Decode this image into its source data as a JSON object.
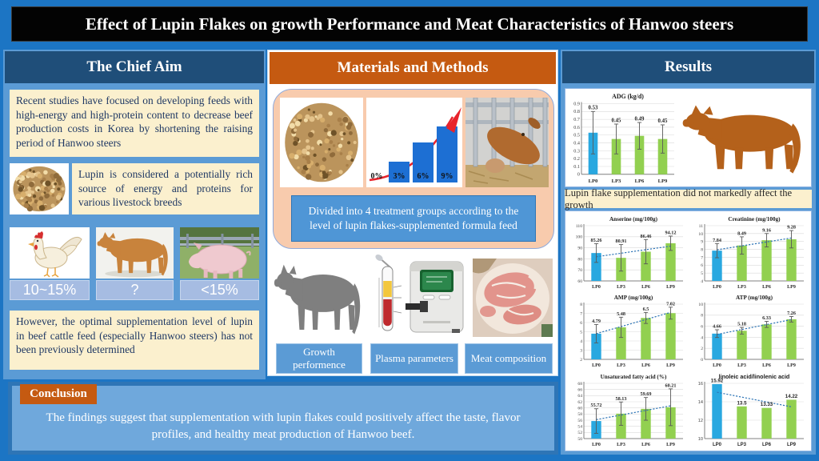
{
  "title": "Effect of Lupin Flakes on growth Performance and Meat Characteristics of Hanwoo steers",
  "colors": {
    "page_bg": "#1C75C4",
    "column_bg": "#5B9BD5",
    "header_navy": "#1F4E79",
    "header_orange": "#C55A11",
    "cream": "#FBF0CE",
    "peach": "#F8CBAD",
    "percent_label_bg": "#A6BCE2",
    "bar_blue": "#29A8E0",
    "bar_green": "#92D050",
    "trend_blue": "#2E75B6",
    "error_gray": "#595959",
    "cow_brown": "#B4611B",
    "conclusion_fill": "#6FA8DC",
    "conclusion_frame": "#2E75B6"
  },
  "left": {
    "header": "The Chief Aim",
    "box1": "Recent studies have focused on developing feeds with high-energy and high-protein content to decrease beef production costs in Korea by shortening the raising period of Hanwoo steers",
    "box2": "Lupin is considered a potentially rich source of energy and proteins for various livestock breeds",
    "animals": [
      {
        "name": "chicken",
        "label": "10~15%"
      },
      {
        "name": "cow",
        "label": "?"
      },
      {
        "name": "pig",
        "label": "<15%"
      }
    ],
    "box3": "However, the optimal supplementation level of lupin in beef cattle feed (especially Hanwoo steers) has not been previously determined"
  },
  "middle": {
    "header": "Materials and Methods",
    "levels": {
      "labels": [
        "0%",
        "3%",
        "6%",
        "9%"
      ]
    },
    "treatment_note": "Divided into 4 treatment groups according to the level of lupin flakes-supplemented formula feed",
    "methods": [
      "Growth performence",
      "Plasma parameters",
      "Meat composition"
    ]
  },
  "results": {
    "header": "Results",
    "note": "Lupin flake supplementation did not markedly affect the growth"
  },
  "conclusion": {
    "label": "Conclusion",
    "text": "The findings suggest that supplementation with lupin flakes could positively affect the taste, flavor profiles, and healthy meat production of Hanwoo beef."
  },
  "chart_data": [
    {
      "type": "bar",
      "title": "ADG (kg/d)",
      "categories": [
        "LP0",
        "LP3",
        "LP6",
        "LP9"
      ],
      "values": [
        0.53,
        0.45,
        0.49,
        0.45
      ],
      "value_labels": [
        "0.53",
        "0.45",
        "0.49",
        "0.45"
      ],
      "errors": [
        0.27,
        0.19,
        0.17,
        0.18
      ],
      "ylim": [
        0,
        0.9
      ],
      "ytick": 0.1,
      "trend": false,
      "xlabel": "",
      "ylabel": "",
      "grid": true,
      "legend": "none"
    },
    {
      "type": "bar",
      "title": "Anserine (mg/100g)",
      "categories": [
        "LP0",
        "LP3",
        "LP6",
        "LP9"
      ],
      "values": [
        85.26,
        80.91,
        86.46,
        94.12
      ],
      "value_labels": [
        "85.26",
        "80.91",
        "86.46",
        "94.12"
      ],
      "errors": [
        8.5,
        12,
        11,
        6.5
      ],
      "ylim": [
        60,
        110
      ],
      "ytick": 10,
      "trend": true,
      "xlabel": "",
      "ylabel": "",
      "grid": true,
      "legend": "none"
    },
    {
      "type": "bar",
      "title": "Creatinine (mg/100g)",
      "categories": [
        "LP0",
        "LP3",
        "LP6",
        "LP9"
      ],
      "values": [
        7.84,
        8.49,
        9.16,
        9.28
      ],
      "value_labels": [
        "7.84",
        "8.49",
        "9.16",
        "9.28"
      ],
      "errors": [
        0.9,
        1.1,
        0.85,
        1.1
      ],
      "ylim": [
        4,
        11
      ],
      "ytick": 1,
      "trend": true,
      "xlabel": "",
      "ylabel": "",
      "grid": true,
      "legend": "none"
    },
    {
      "type": "bar",
      "title": "AMP (mg/100g)",
      "categories": [
        "LP0",
        "LP3",
        "LP6",
        "LP9"
      ],
      "values": [
        4.79,
        5.48,
        6.5,
        7.02
      ],
      "value_labels": [
        "4.79",
        "5.48",
        "6.5",
        "7.02"
      ],
      "errors": [
        1.0,
        1.1,
        0.6,
        0.65
      ],
      "ylim": [
        2,
        8
      ],
      "ytick": 1,
      "trend": true,
      "xlabel": "",
      "ylabel": "",
      "grid": true,
      "legend": "none"
    },
    {
      "type": "bar",
      "title": "ATP (mg/100g)",
      "categories": [
        "LP0",
        "LP3",
        "LP6",
        "LP9"
      ],
      "values": [
        4.66,
        5.18,
        6.33,
        7.26
      ],
      "value_labels": [
        "4.66",
        "5.18",
        "6.33",
        "7.26"
      ],
      "errors": [
        0.7,
        0.6,
        0.55,
        0.5
      ],
      "ylim": [
        0,
        10
      ],
      "ytick": 2,
      "trend": true,
      "xlabel": "",
      "ylabel": "",
      "grid": true,
      "legend": "none"
    },
    {
      "type": "bar",
      "title": "Unsaturated fatty acid (%)",
      "categories": [
        "LP0",
        "LP3",
        "LP6",
        "LP9"
      ],
      "values": [
        55.72,
        58.13,
        59.69,
        60.21
      ],
      "value_labels": [
        "55.72",
        "58.13",
        "59.69",
        "60.21"
      ],
      "errors": [
        4,
        3.8,
        3.7,
        6
      ],
      "ylim": [
        50,
        68
      ],
      "ytick": 2,
      "trend": true,
      "xlabel": "",
      "ylabel": "",
      "grid": true,
      "legend": "none"
    },
    {
      "type": "bar",
      "title": "linoleic acid/linolenic acid",
      "categories": [
        "LP0",
        "LP3",
        "LP6",
        "LP9"
      ],
      "values": [
        15.92,
        13.5,
        13.33,
        14.22
      ],
      "value_labels": [
        "15.92",
        "13.5",
        "13.33",
        "14.22"
      ],
      "errors": null,
      "ylim": [
        10,
        16
      ],
      "ytick": 2,
      "trend": true,
      "font_style": "sans",
      "xlabel": "",
      "ylabel": "",
      "grid": true,
      "legend": "none"
    }
  ]
}
